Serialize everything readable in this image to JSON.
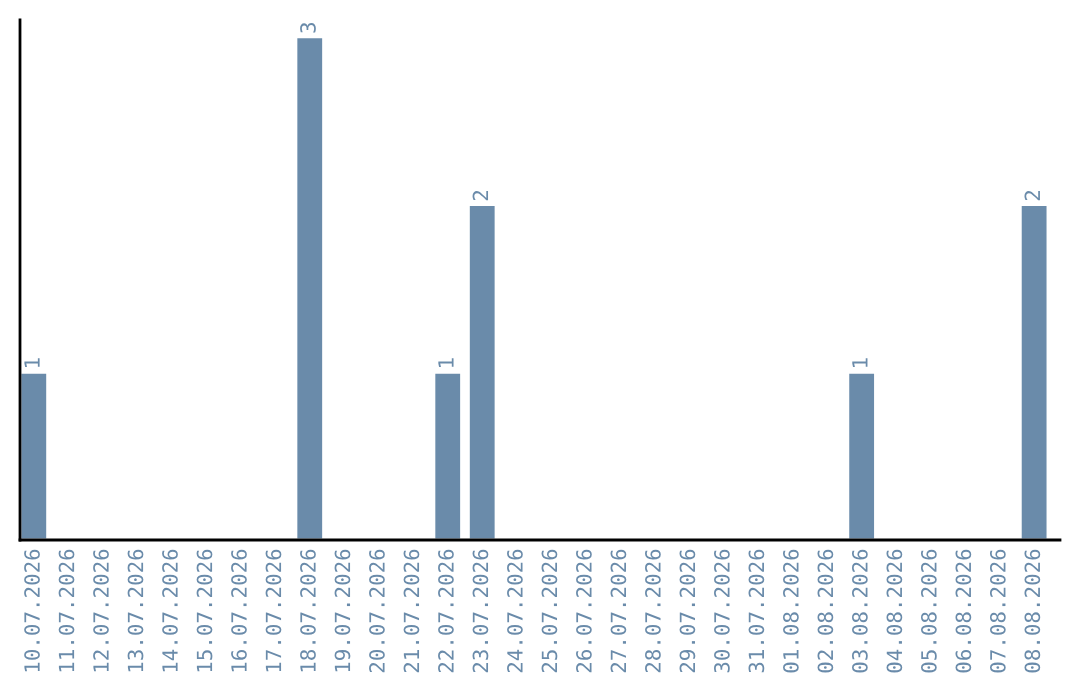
{
  "chart_data": {
    "type": "bar",
    "categories": [
      "10.07.2026",
      "11.07.2026",
      "12.07.2026",
      "13.07.2026",
      "14.07.2026",
      "15.07.2026",
      "16.07.2026",
      "17.07.2026",
      "18.07.2026",
      "19.07.2026",
      "20.07.2026",
      "21.07.2026",
      "22.07.2026",
      "23.07.2026",
      "24.07.2026",
      "25.07.2026",
      "26.07.2026",
      "27.07.2026",
      "28.07.2026",
      "29.07.2026",
      "30.07.2026",
      "31.07.2026",
      "01.08.2026",
      "02.08.2026",
      "03.08.2026",
      "04.08.2026",
      "05.08.2026",
      "06.08.2026",
      "07.08.2026",
      "08.08.2026"
    ],
    "values": [
      1,
      null,
      null,
      null,
      null,
      null,
      null,
      null,
      3,
      null,
      null,
      null,
      1,
      2,
      null,
      null,
      null,
      null,
      null,
      null,
      null,
      null,
      null,
      null,
      1,
      null,
      null,
      null,
      null,
      2
    ],
    "value_labels": [
      "1",
      null,
      null,
      null,
      null,
      null,
      null,
      null,
      "3",
      null,
      null,
      null,
      "1",
      "2",
      null,
      null,
      null,
      null,
      null,
      null,
      null,
      null,
      null,
      null,
      "1",
      null,
      null,
      null,
      null,
      "2"
    ],
    "color": "#6a8baa",
    "ylim": [
      0,
      3.1
    ],
    "tick_labels": "x",
    "grid": false,
    "legend": false
  }
}
